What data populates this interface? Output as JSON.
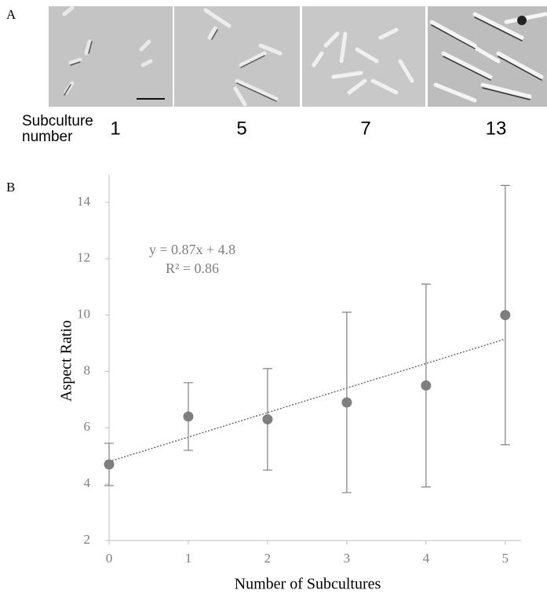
{
  "panel_a": {
    "label": "A",
    "row_label": [
      "Subculture",
      "number"
    ],
    "subcultures": [
      "1",
      "5",
      "7",
      "13"
    ]
  },
  "chart_data": {
    "type": "scatter",
    "panel_label": "B",
    "xlabel": "Number of Subcultures",
    "ylabel": "Aspect Ratio",
    "annotations": [
      "y = 0.87x + 4.8",
      "R² = 0.86"
    ],
    "x": [
      0,
      1,
      2,
      3,
      4,
      5
    ],
    "values": [
      4.7,
      6.4,
      6.3,
      6.9,
      7.5,
      10.0
    ],
    "errors": [
      0.75,
      1.2,
      1.8,
      3.2,
      3.6,
      4.6
    ],
    "trendline": {
      "x": [
        0,
        5
      ],
      "y": [
        4.8,
        9.15
      ]
    },
    "color": "#7f7f7f",
    "xlim": [
      0,
      5.2
    ],
    "ylim": [
      2,
      15
    ],
    "xticks": [
      0,
      1,
      2,
      3,
      4,
      5
    ],
    "yticks": [
      2,
      4,
      6,
      8,
      10,
      12,
      14
    ]
  }
}
